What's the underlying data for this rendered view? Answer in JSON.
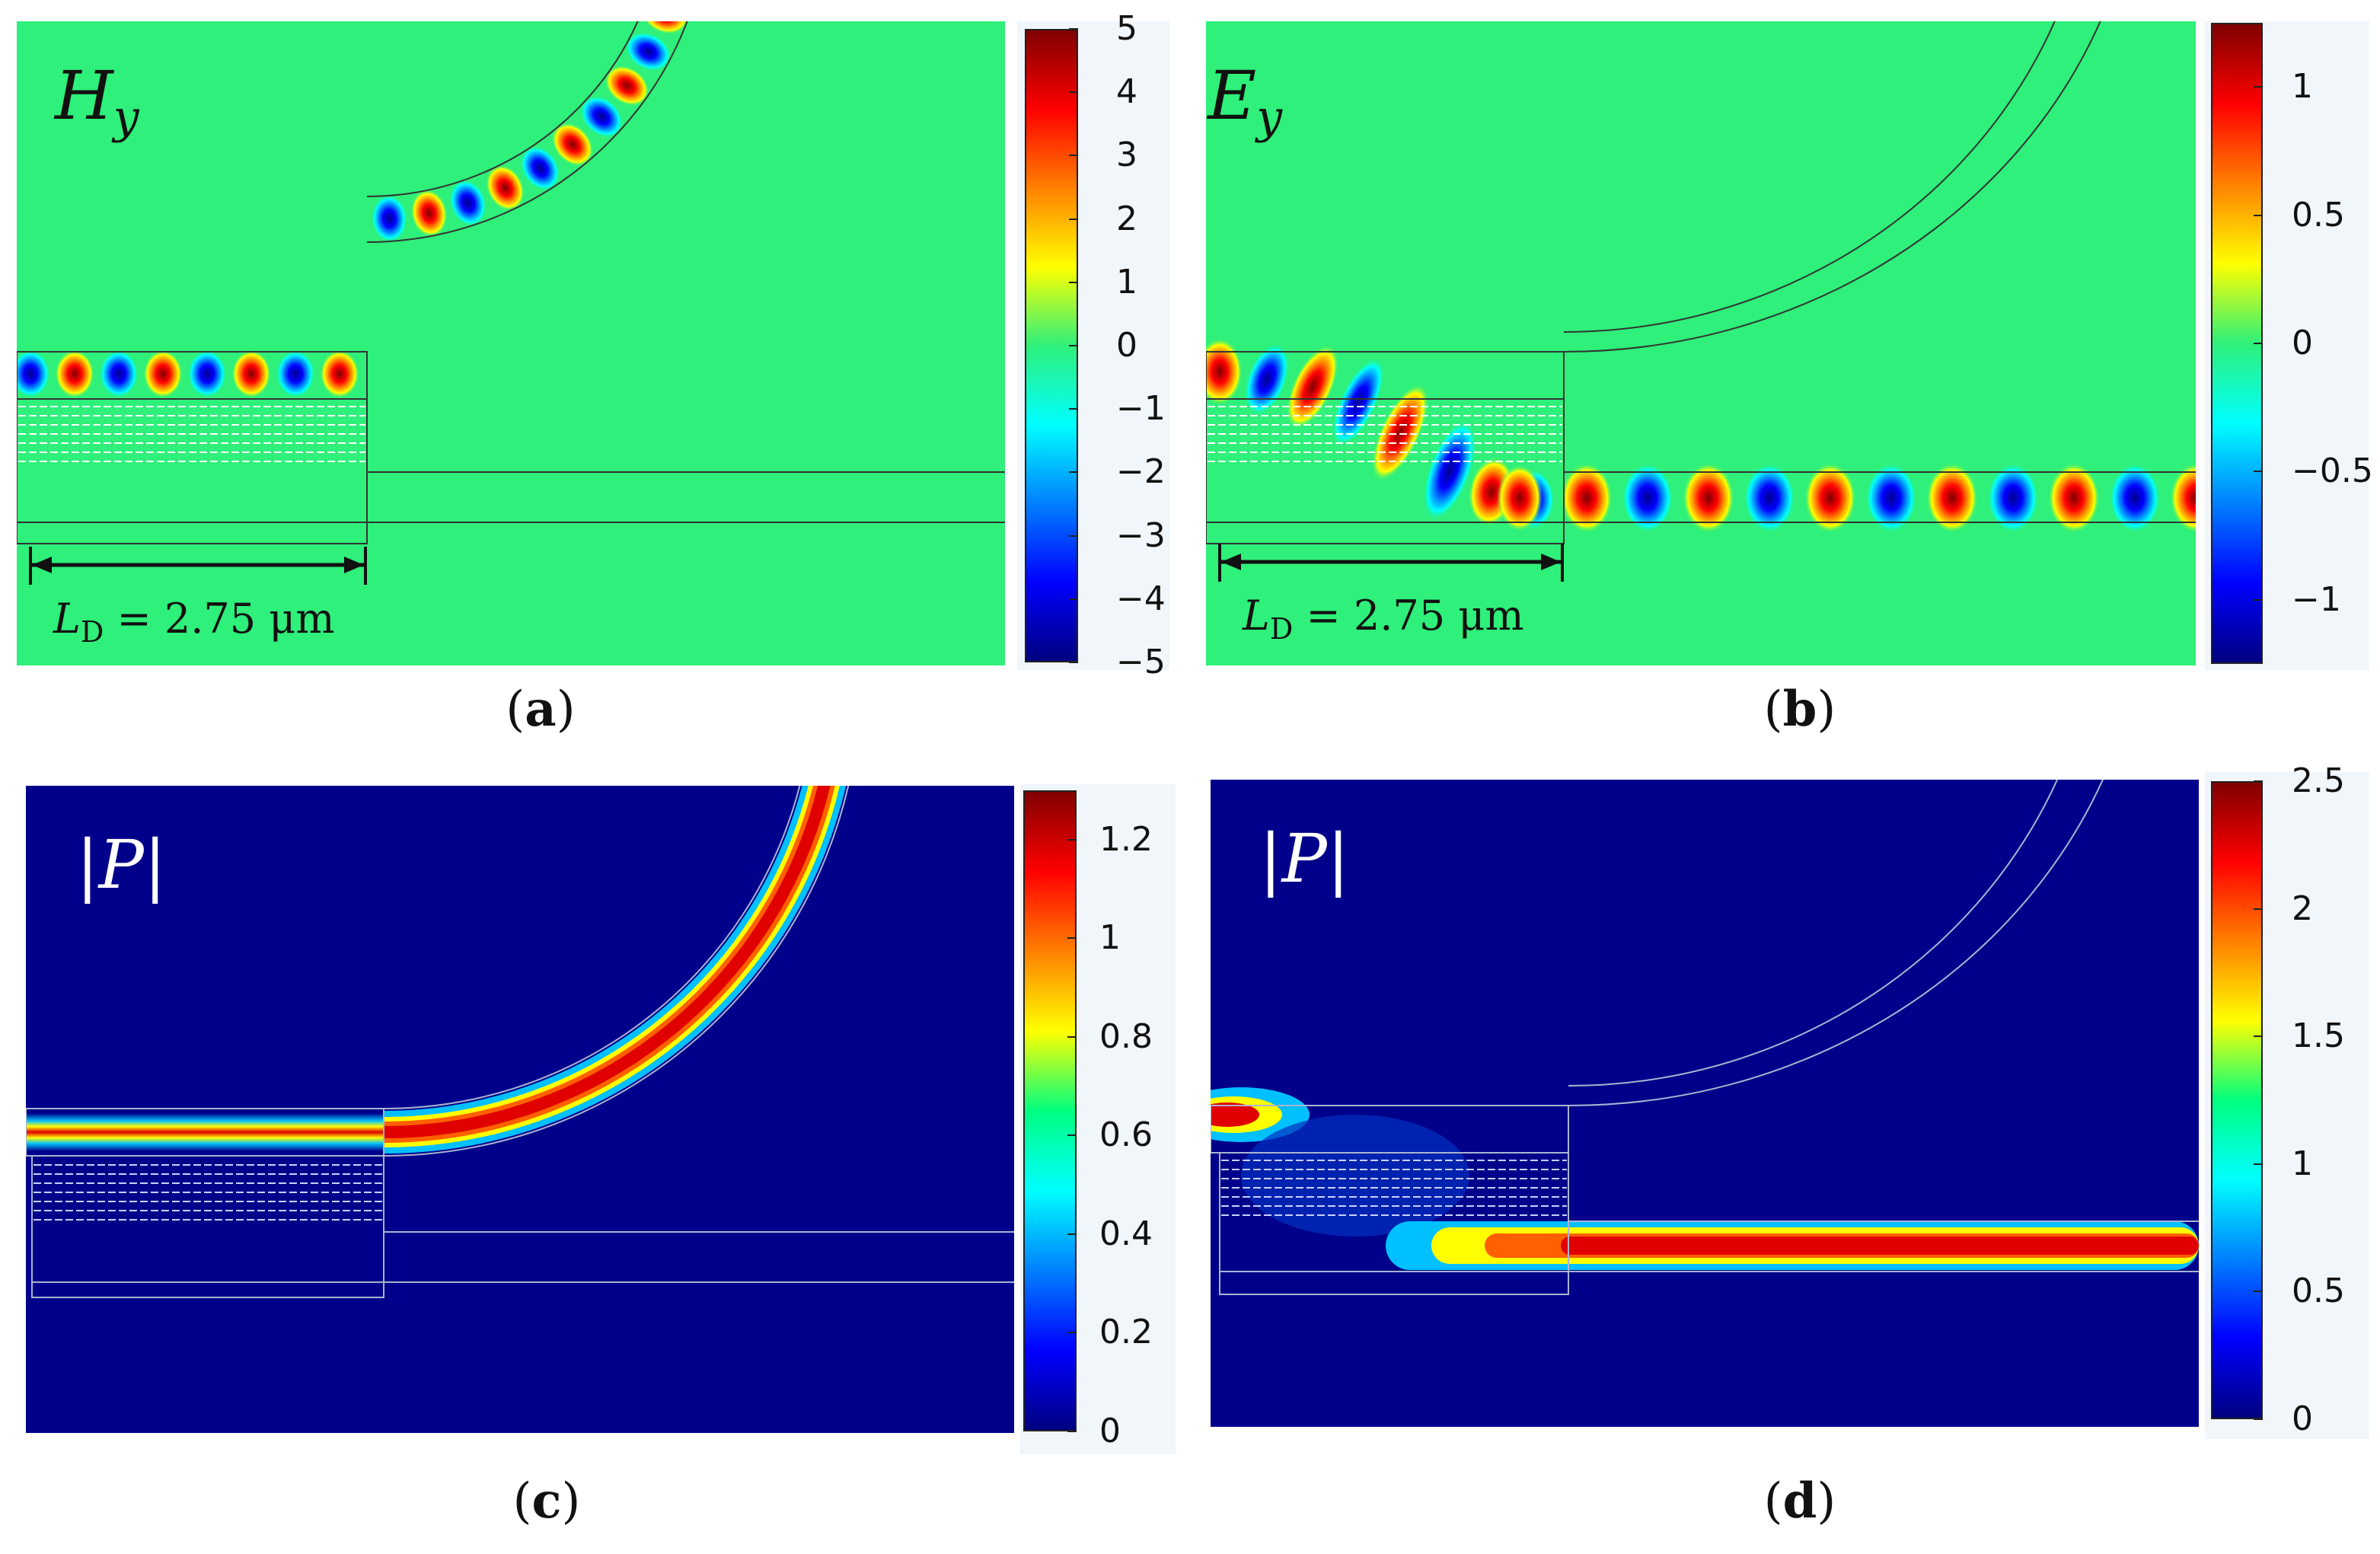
{
  "figure": {
    "panels": [
      {
        "id": "a",
        "caption_open": "(",
        "caption_letter": "a",
        "caption_close": ")",
        "field_label": "H",
        "field_subscript": "y",
        "length_label_symbol": "L",
        "length_label_subscript": "D",
        "length_label_value": " = 2.75 μm",
        "colorbar": {
          "min": -5,
          "max": 5,
          "ticks": [
            "5",
            "4",
            "3",
            "2",
            "1",
            "0",
            "−1",
            "−2",
            "−3",
            "−4",
            "−5"
          ],
          "tick_values": [
            5,
            4,
            3,
            2,
            1,
            0,
            -1,
            -2,
            -3,
            -4,
            -5
          ]
        }
      },
      {
        "id": "b",
        "caption_open": "(",
        "caption_letter": "b",
        "caption_close": ")",
        "field_label": "E",
        "field_subscript": "y",
        "length_label_symbol": "L",
        "length_label_subscript": "D",
        "length_label_value": " = 2.75 μm",
        "colorbar": {
          "min": -1.25,
          "max": 1.25,
          "ticks": [
            "1",
            "0.5",
            "0",
            "−0.5",
            "−1"
          ],
          "tick_values": [
            1,
            0.5,
            0,
            -0.5,
            -1
          ]
        }
      },
      {
        "id": "c",
        "caption_open": "(",
        "caption_letter": "c",
        "caption_close": ")",
        "field_label": "|P|",
        "colorbar": {
          "min": 0,
          "max": 1.3,
          "ticks": [
            "1.2",
            "1",
            "0.8",
            "0.6",
            "0.4",
            "0.2",
            "0"
          ],
          "tick_values": [
            1.2,
            1,
            0.8,
            0.6,
            0.4,
            0.2,
            0
          ]
        }
      },
      {
        "id": "d",
        "caption_open": "(",
        "caption_letter": "d",
        "caption_close": ")",
        "field_label": "|P|",
        "colorbar": {
          "min": 0,
          "max": 2.5,
          "ticks": [
            "2.5",
            "2",
            "1.5",
            "1",
            "0.5",
            "0"
          ],
          "tick_values": [
            2.5,
            2,
            1.5,
            1,
            0.5,
            0
          ]
        }
      }
    ],
    "colors": {
      "jet_green": "#2ef07a",
      "jet_dark_blue": "#000080",
      "red": "#e8101a",
      "blue": "#1a20f0"
    }
  }
}
